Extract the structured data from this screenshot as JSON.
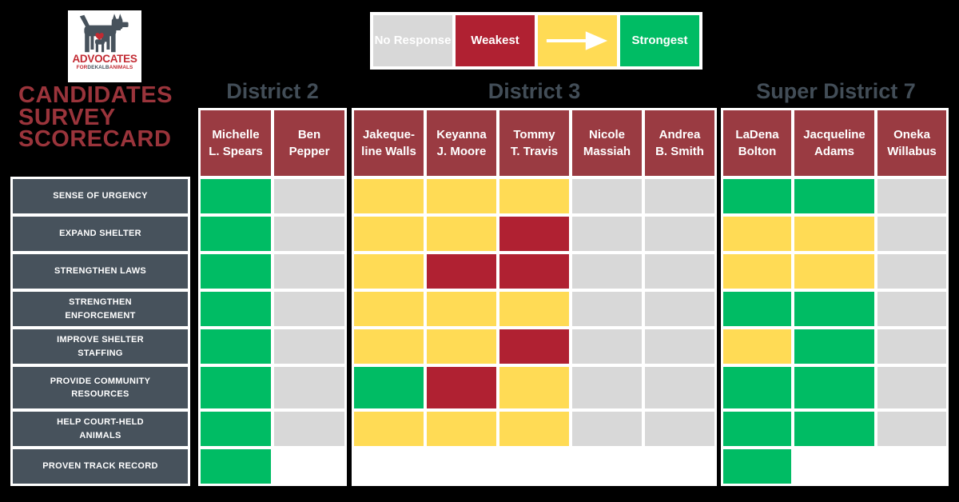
{
  "logo": {
    "line1": "ADVOCATES",
    "line2_for": "FOR",
    "line2_dekalb": "DEKALB",
    "line2_animals": "ANIMALS"
  },
  "page_title": {
    "lines": [
      "CANDIDATES",
      "SURVEY",
      "SCORECARD"
    ]
  },
  "chart_data": {
    "type": "heatmap",
    "title": "Candidates Survey Scorecard",
    "legend": [
      {
        "key": "no-response",
        "label": "No Response",
        "color": "#D8D8D8"
      },
      {
        "key": "weakest",
        "label": "Weakest",
        "color": "#B02132"
      },
      {
        "key": "scale-arrow",
        "label": "",
        "color": "#FFDB55",
        "icon": "right-arrow-icon"
      },
      {
        "key": "strongest",
        "label": "Strongest",
        "color": "#00BC64"
      }
    ],
    "rows": [
      "SENSE OF URGENCY",
      "EXPAND SHELTER",
      "STRENGTHEN LAWS",
      "STRENGTHEN ENFORCEMENT",
      "IMPROVE SHELTER STAFFING",
      "PROVIDE  COMMUNITY RESOURCES",
      "HELP COURT-HELD ANIMALS",
      "PROVEN TRACK RECORD"
    ],
    "value_colors": {
      "g": "#00BC64",
      "y": "#FFDB55",
      "r": "#B02132",
      "n": "#D8D8D8",
      "w": "#FFFFFF"
    },
    "value_meanings": {
      "g": "strongest",
      "y": "middle",
      "r": "weakest",
      "n": "no-response",
      "w": "blank"
    },
    "groups": [
      {
        "title": "District 2",
        "candidates": [
          {
            "name_lines": [
              "Michelle",
              "L. Spears"
            ],
            "scores": [
              "g",
              "g",
              "g",
              "g",
              "g",
              "g",
              "g",
              "g"
            ]
          },
          {
            "name_lines": [
              "Ben",
              "Pepper"
            ],
            "scores": [
              "n",
              "n",
              "n",
              "n",
              "n",
              "n",
              "n",
              "w"
            ]
          }
        ]
      },
      {
        "title": "District 3",
        "candidates": [
          {
            "name_lines": [
              "Jakeque-",
              "line Walls"
            ],
            "scores": [
              "y",
              "y",
              "y",
              "y",
              "y",
              "g",
              "y",
              "w"
            ]
          },
          {
            "name_lines": [
              "Keyanna",
              "J. Moore"
            ],
            "scores": [
              "y",
              "y",
              "r",
              "y",
              "y",
              "r",
              "y",
              "w"
            ]
          },
          {
            "name_lines": [
              "Tommy",
              "T. Travis"
            ],
            "scores": [
              "y",
              "r",
              "r",
              "y",
              "r",
              "y",
              "y",
              "w"
            ]
          },
          {
            "name_lines": [
              "Nicole",
              "Massiah"
            ],
            "scores": [
              "n",
              "n",
              "n",
              "n",
              "n",
              "n",
              "n",
              "w"
            ]
          },
          {
            "name_lines": [
              "Andrea",
              "B. Smith"
            ],
            "scores": [
              "n",
              "n",
              "n",
              "n",
              "n",
              "n",
              "n",
              "w"
            ]
          }
        ]
      },
      {
        "title": "Super District 7",
        "candidates": [
          {
            "name_lines": [
              "LaDena",
              "Bolton"
            ],
            "scores": [
              "g",
              "y",
              "y",
              "g",
              "y",
              "g",
              "g",
              "g"
            ]
          },
          {
            "name_lines": [
              "Jacqueline",
              "Adams"
            ],
            "scores": [
              "g",
              "y",
              "y",
              "g",
              "g",
              "g",
              "g",
              "w"
            ]
          },
          {
            "name_lines": [
              "Oneka",
              "Willabus"
            ],
            "scores": [
              "n",
              "n",
              "n",
              "n",
              "n",
              "n",
              "n",
              "w"
            ]
          }
        ]
      }
    ]
  }
}
